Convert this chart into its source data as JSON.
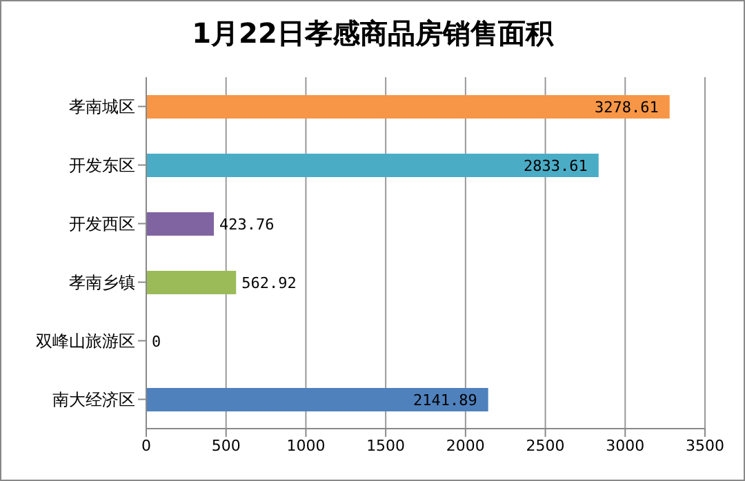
{
  "chart_data": {
    "type": "bar",
    "orientation": "horizontal",
    "title": "1月22日孝感商品房销售面积",
    "categories": [
      "孝南城区",
      "开发东区",
      "开发西区",
      "孝南乡镇",
      "双峰山旅游区",
      "南大经济区"
    ],
    "values": [
      3278.61,
      2833.61,
      423.76,
      562.92,
      0,
      2141.89
    ],
    "colors": [
      "#f79646",
      "#4bacc6",
      "#8064a2",
      "#9bbb59",
      "#c0504d",
      "#4f81bd"
    ],
    "xlim": [
      0,
      3500
    ],
    "xticks": [
      0,
      500,
      1000,
      1500,
      2000,
      2500,
      3000,
      3500
    ],
    "grid": "x",
    "data_labels": true
  }
}
